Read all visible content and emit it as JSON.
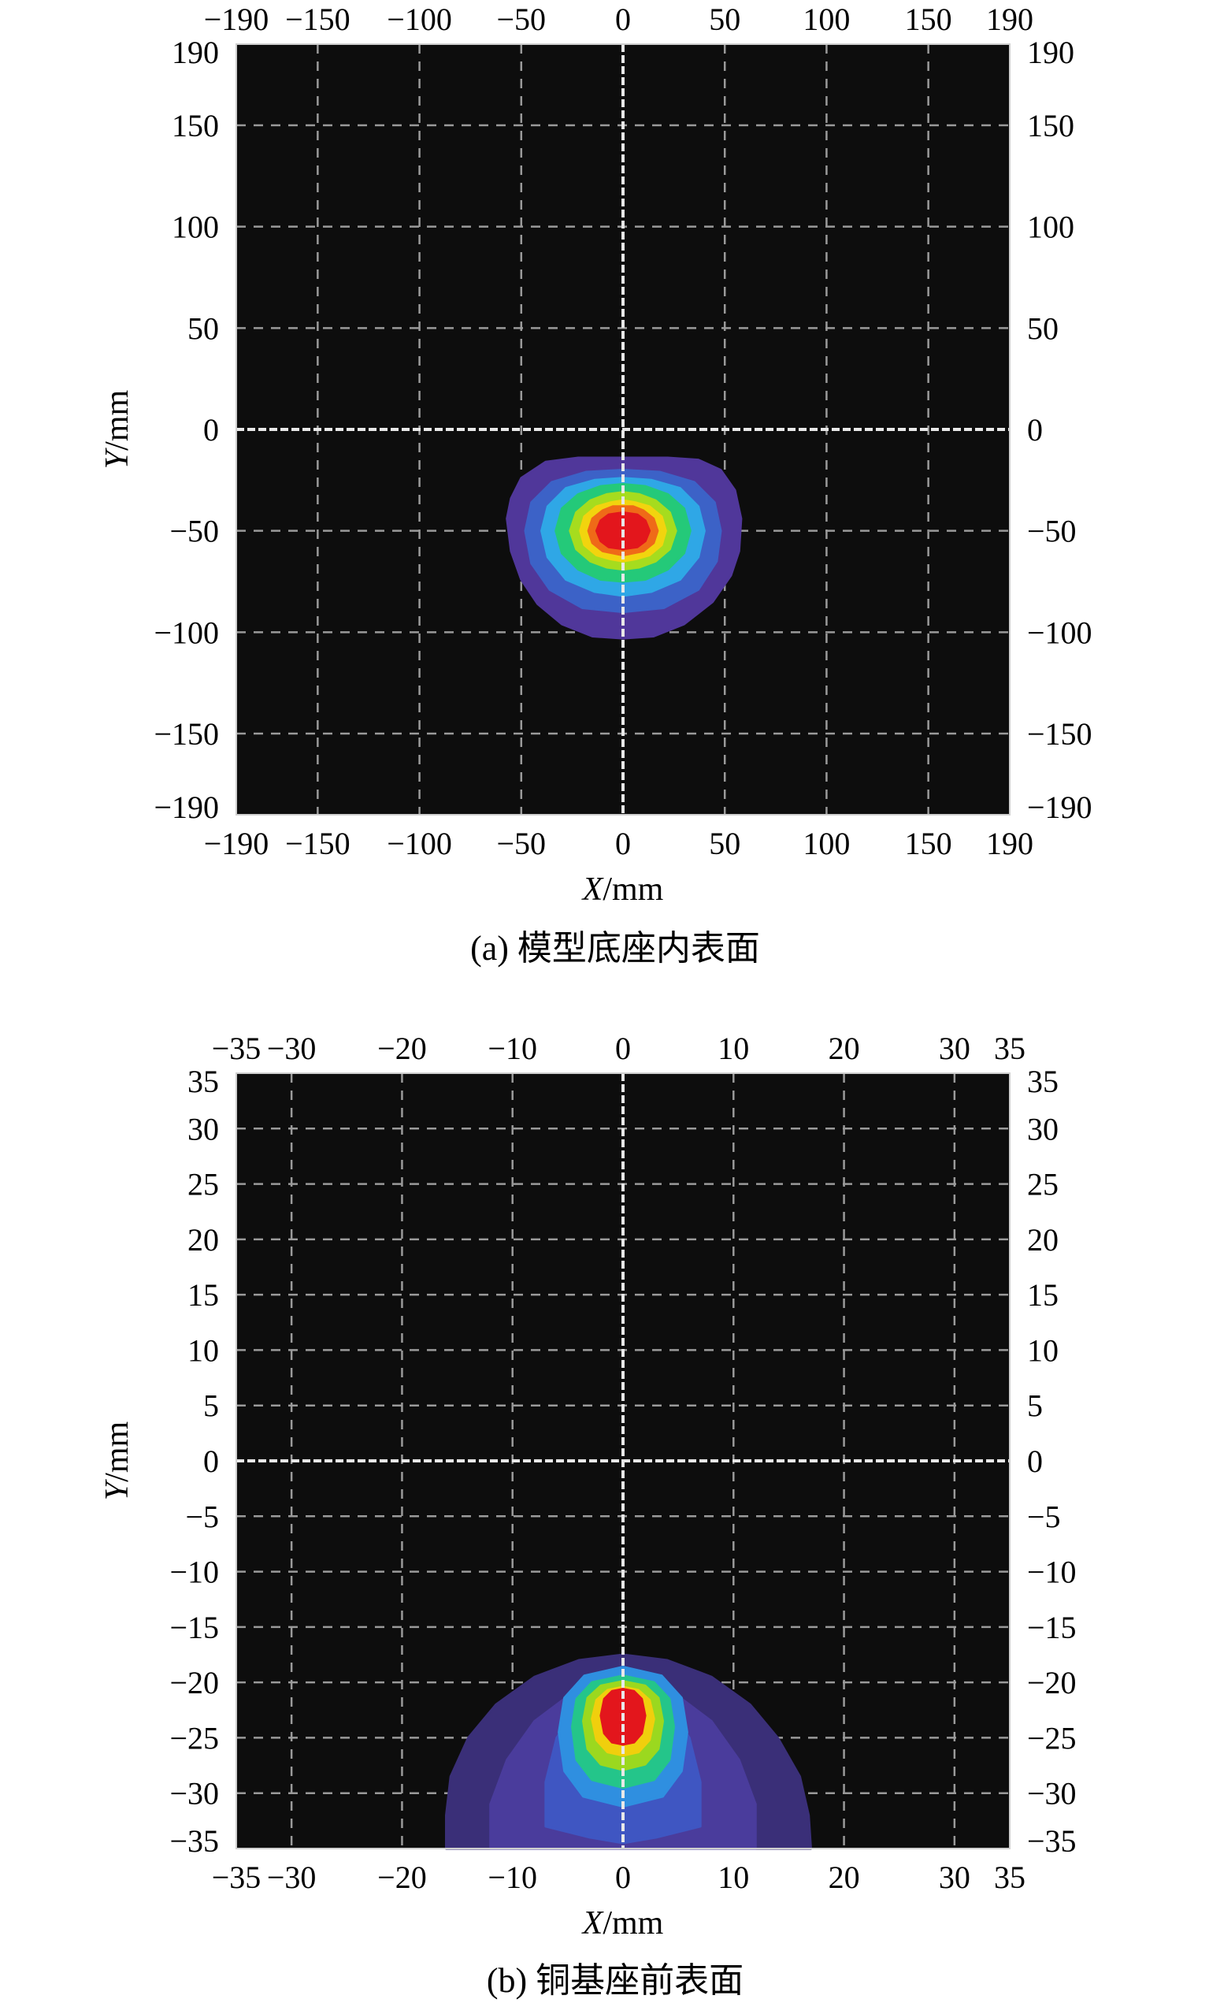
{
  "chart_data": [
    {
      "type": "heatmap",
      "panel_label": "(a) 模型底座内表面",
      "xlabel_var": "X",
      "xlabel_unit": "/mm",
      "ylabel_var": "Y",
      "ylabel_unit": "/mm",
      "xlim": [
        -190,
        190
      ],
      "ylim": [
        -190,
        190
      ],
      "xticks": [
        -190,
        -150,
        -100,
        -50,
        0,
        50,
        100,
        150,
        190
      ],
      "yticks": [
        190,
        150,
        100,
        50,
        0,
        -50,
        -100,
        -150,
        -190
      ],
      "xtick_labels": [
        "−190",
        "−150",
        "−100",
        "−50",
        "0",
        "50",
        "100",
        "150",
        "190"
      ],
      "ytick_labels": [
        "190",
        "150",
        "100",
        "50",
        "0",
        "−50",
        "−100",
        "−150",
        "−190"
      ],
      "grid": true,
      "background": "#0d0d0d",
      "hotspot": {
        "center": [
          0,
          -50
        ],
        "extent_x": [
          -57,
          58
        ],
        "extent_y": [
          -103,
          -14
        ]
      },
      "contours": [
        {
          "level": 1,
          "color": "#50379a",
          "points": [
            [
              -57,
              -44
            ],
            [
              -55,
              -60
            ],
            [
              -50,
              -74
            ],
            [
              -42,
              -86
            ],
            [
              -30,
              -96
            ],
            [
              -15,
              -102
            ],
            [
              0,
              -103
            ],
            [
              15,
              -102
            ],
            [
              30,
              -96
            ],
            [
              44,
              -85
            ],
            [
              53,
              -72
            ],
            [
              57,
              -60
            ],
            [
              58,
              -44
            ],
            [
              55,
              -30
            ],
            [
              48,
              -20
            ],
            [
              37,
              -15
            ],
            [
              22,
              -14
            ],
            [
              0,
              -14
            ],
            [
              -22,
              -14
            ],
            [
              -38,
              -16
            ],
            [
              -50,
              -24
            ],
            [
              -55,
              -34
            ]
          ]
        },
        {
          "level": 2,
          "color": "#3c62c7",
          "points": [
            [
              -48,
              -50
            ],
            [
              -45,
              -66
            ],
            [
              -36,
              -79
            ],
            [
              -20,
              -88
            ],
            [
              0,
              -90
            ],
            [
              20,
              -88
            ],
            [
              37,
              -79
            ],
            [
              46,
              -65
            ],
            [
              48,
              -50
            ],
            [
              45,
              -36
            ],
            [
              35,
              -26
            ],
            [
              18,
              -21
            ],
            [
              0,
              -20
            ],
            [
              -18,
              -21
            ],
            [
              -35,
              -26
            ],
            [
              -45,
              -36
            ]
          ]
        },
        {
          "level": 3,
          "color": "#2fa7e6",
          "points": [
            [
              -40,
              -50
            ],
            [
              -37,
              -63
            ],
            [
              -28,
              -74
            ],
            [
              -14,
              -80
            ],
            [
              0,
              -82
            ],
            [
              14,
              -80
            ],
            [
              28,
              -74
            ],
            [
              37,
              -63
            ],
            [
              40,
              -50
            ],
            [
              37,
              -38
            ],
            [
              28,
              -29
            ],
            [
              14,
              -25
            ],
            [
              0,
              -24
            ],
            [
              -14,
              -25
            ],
            [
              -28,
              -29
            ],
            [
              -37,
              -38
            ]
          ]
        },
        {
          "level": 4,
          "color": "#24c979",
          "points": [
            [
              -33,
              -50
            ],
            [
              -30,
              -61
            ],
            [
              -22,
              -69
            ],
            [
              -11,
              -74
            ],
            [
              0,
              -75
            ],
            [
              11,
              -74
            ],
            [
              22,
              -69
            ],
            [
              30,
              -61
            ],
            [
              33,
              -50
            ],
            [
              30,
              -39
            ],
            [
              22,
              -32
            ],
            [
              11,
              -28
            ],
            [
              0,
              -27
            ],
            [
              -11,
              -28
            ],
            [
              -22,
              -32
            ],
            [
              -30,
              -39
            ]
          ]
        },
        {
          "level": 5,
          "color": "#a6dc1e",
          "points": [
            [
              -26,
              -50
            ],
            [
              -23,
              -59
            ],
            [
              -16,
              -65
            ],
            [
              -8,
              -68
            ],
            [
              0,
              -69
            ],
            [
              8,
              -68
            ],
            [
              16,
              -65
            ],
            [
              23,
              -59
            ],
            [
              26,
              -50
            ],
            [
              23,
              -41
            ],
            [
              16,
              -35
            ],
            [
              8,
              -32
            ],
            [
              0,
              -31
            ],
            [
              -8,
              -32
            ],
            [
              -16,
              -35
            ],
            [
              -23,
              -41
            ]
          ]
        },
        {
          "level": 6,
          "color": "#f2d40e",
          "points": [
            [
              -21,
              -50
            ],
            [
              -19,
              -57
            ],
            [
              -13,
              -62
            ],
            [
              -6,
              -64
            ],
            [
              0,
              -65
            ],
            [
              6,
              -64
            ],
            [
              13,
              -62
            ],
            [
              19,
              -57
            ],
            [
              21,
              -50
            ],
            [
              19,
              -43
            ],
            [
              13,
              -38
            ],
            [
              6,
              -36
            ],
            [
              0,
              -35
            ],
            [
              -6,
              -36
            ],
            [
              -13,
              -38
            ],
            [
              -19,
              -43
            ]
          ]
        },
        {
          "level": 7,
          "color": "#ef6a18",
          "points": [
            [
              -17,
              -50
            ],
            [
              -15,
              -56
            ],
            [
              -10,
              -60
            ],
            [
              -5,
              -61
            ],
            [
              0,
              -62
            ],
            [
              5,
              -61
            ],
            [
              10,
              -60
            ],
            [
              15,
              -56
            ],
            [
              17,
              -50
            ],
            [
              15,
              -44
            ],
            [
              10,
              -40
            ],
            [
              5,
              -38
            ],
            [
              0,
              -38
            ],
            [
              -5,
              -38
            ],
            [
              -10,
              -40
            ],
            [
              -15,
              -44
            ]
          ]
        },
        {
          "level": 8,
          "color": "#e3161c",
          "points": [
            [
              -13,
              -50
            ],
            [
              -11,
              -55
            ],
            [
              -7,
              -58
            ],
            [
              0,
              -59
            ],
            [
              7,
              -58
            ],
            [
              11,
              -55
            ],
            [
              13,
              -50
            ],
            [
              11,
              -45
            ],
            [
              7,
              -42
            ],
            [
              0,
              -41
            ],
            [
              -7,
              -42
            ],
            [
              -11,
              -45
            ]
          ]
        }
      ]
    },
    {
      "type": "heatmap",
      "panel_label": "(b) 铜基座前表面",
      "xlabel_var": "X",
      "xlabel_unit": "/mm",
      "ylabel_var": "Y",
      "ylabel_unit": "/mm",
      "xlim": [
        -35,
        35
      ],
      "ylim": [
        -35,
        35
      ],
      "xticks": [
        -35,
        -30,
        -20,
        -10,
        0,
        10,
        20,
        30,
        35
      ],
      "yticks": [
        35,
        30,
        25,
        20,
        15,
        10,
        5,
        0,
        -5,
        -10,
        -15,
        -20,
        -25,
        -30,
        -35
      ],
      "xtick_labels": [
        "−35",
        "−30",
        "−20",
        "−10",
        "0",
        "10",
        "20",
        "30",
        "35"
      ],
      "ytick_labels": [
        "35",
        "30",
        "25",
        "20",
        "15",
        "10",
        "5",
        "0",
        "−5",
        "−10",
        "−15",
        "−20",
        "−25",
        "−30",
        "−35"
      ],
      "grid": true,
      "background": "#0d0d0d",
      "hotspot": {
        "center": [
          0,
          -23
        ],
        "extent_x": [
          -16,
          17
        ],
        "extent_y": [
          -35,
          -17
        ]
      },
      "contours": [
        {
          "level": 1,
          "color": "#3a2f78",
          "points": [
            [
              -16,
              -35
            ],
            [
              -16,
              -32
            ],
            [
              -15.6,
              -28.5
            ],
            [
              -14,
              -25
            ],
            [
              -11.5,
              -22
            ],
            [
              -8,
              -19.5
            ],
            [
              -4,
              -18
            ],
            [
              0,
              -17.5
            ],
            [
              4,
              -18
            ],
            [
              8,
              -19.5
            ],
            [
              11.5,
              -22
            ],
            [
              14,
              -25
            ],
            [
              16,
              -28.5
            ],
            [
              16.8,
              -32
            ],
            [
              17,
              -35
            ]
          ]
        },
        {
          "level": 2,
          "color": "#4a3c9c",
          "points": [
            [
              -12,
              -35
            ],
            [
              -12,
              -31
            ],
            [
              -10.5,
              -27
            ],
            [
              -8,
              -23.5
            ],
            [
              -4,
              -20.5
            ],
            [
              0,
              -20
            ],
            [
              4,
              -20.5
            ],
            [
              8,
              -23.5
            ],
            [
              10.5,
              -27
            ],
            [
              12,
              -31
            ],
            [
              12,
              -35
            ]
          ]
        },
        {
          "level": 3,
          "color": "#3f56c2",
          "points": [
            [
              -7,
              -33
            ],
            [
              -7,
              -29
            ],
            [
              -6,
              -25
            ],
            [
              -4,
              -22
            ],
            [
              0,
              -20.8
            ],
            [
              4,
              -22
            ],
            [
              6,
              -25
            ],
            [
              7,
              -29
            ],
            [
              7,
              -33
            ],
            [
              3,
              -34
            ],
            [
              0,
              -34.5
            ],
            [
              -3,
              -34
            ]
          ]
        },
        {
          "level": 4,
          "color": "#2f8fe0",
          "points": [
            [
              -5.8,
              -24.5
            ],
            [
              -5.3,
              -28
            ],
            [
              -3.6,
              -30.3
            ],
            [
              0,
              -31.2
            ],
            [
              3.6,
              -30.3
            ],
            [
              5.3,
              -28
            ],
            [
              5.8,
              -24.5
            ],
            [
              5.3,
              -21.4
            ],
            [
              3.5,
              -19.4
            ],
            [
              0,
              -18.6
            ],
            [
              -3.5,
              -19.4
            ],
            [
              -5.3,
              -21.4
            ]
          ]
        },
        {
          "level": 5,
          "color": "#24c58a",
          "points": [
            [
              -4.6,
              -24
            ],
            [
              -4.2,
              -27
            ],
            [
              -2.8,
              -28.8
            ],
            [
              0,
              -29.5
            ],
            [
              2.8,
              -28.8
            ],
            [
              4.2,
              -27
            ],
            [
              4.6,
              -24
            ],
            [
              4.2,
              -21.5
            ],
            [
              2.8,
              -20
            ],
            [
              0,
              -19.4
            ],
            [
              -2.8,
              -20
            ],
            [
              -4.2,
              -21.5
            ]
          ]
        },
        {
          "level": 6,
          "color": "#9bd81f",
          "points": [
            [
              -3.6,
              -23.5
            ],
            [
              -3.2,
              -26
            ],
            [
              -2,
              -27.4
            ],
            [
              0,
              -27.9
            ],
            [
              2,
              -27.4
            ],
            [
              3.2,
              -26
            ],
            [
              3.6,
              -23.5
            ],
            [
              3.2,
              -21.4
            ],
            [
              2,
              -20.3
            ],
            [
              0,
              -19.9
            ],
            [
              -2,
              -20.3
            ],
            [
              -3.2,
              -21.4
            ]
          ]
        },
        {
          "level": 7,
          "color": "#f0cf0d",
          "points": [
            [
              -2.8,
              -23.3
            ],
            [
              -2.4,
              -25.2
            ],
            [
              -1.4,
              -26.3
            ],
            [
              0,
              -26.6
            ],
            [
              1.4,
              -26.3
            ],
            [
              2.4,
              -25.2
            ],
            [
              2.8,
              -23.3
            ],
            [
              2.4,
              -21.6
            ],
            [
              1.4,
              -20.7
            ],
            [
              0,
              -20.4
            ],
            [
              -1.4,
              -20.7
            ],
            [
              -2.4,
              -21.6
            ]
          ]
        },
        {
          "level": 8,
          "color": "#e3161c",
          "points": [
            [
              -2,
              -23
            ],
            [
              -1.7,
              -24.6
            ],
            [
              -1,
              -25.4
            ],
            [
              0,
              -25.6
            ],
            [
              1,
              -25.4
            ],
            [
              1.7,
              -24.6
            ],
            [
              2,
              -23
            ],
            [
              1.7,
              -21.5
            ],
            [
              1,
              -20.8
            ],
            [
              0,
              -20.6
            ],
            [
              -1,
              -20.8
            ],
            [
              -1.7,
              -21.5
            ]
          ]
        }
      ]
    }
  ]
}
